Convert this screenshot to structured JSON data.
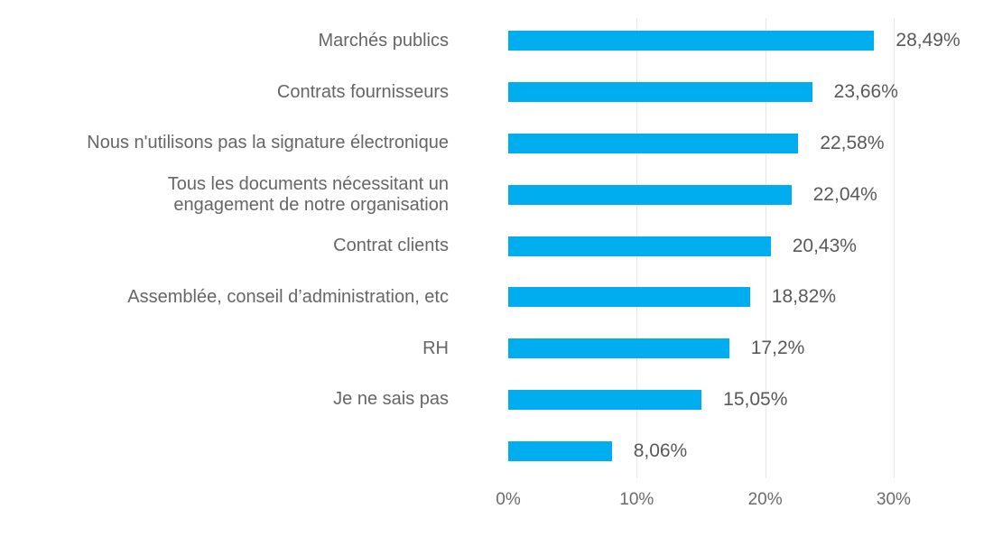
{
  "chart_data": {
    "type": "bar",
    "orientation": "horizontal",
    "title": "",
    "categories": [
      "Marchés publics",
      "Contrats fournisseurs",
      "Nous n'utilisons pas la signature électronique",
      "Tous les documents nécessitant un\nengagement de notre organisation",
      "Contrat clients",
      "Assemblée, conseil d’administration, etc",
      "RH",
      "Je ne sais pas",
      ""
    ],
    "values": [
      28.49,
      23.66,
      22.58,
      22.04,
      20.43,
      18.82,
      17.2,
      15.05,
      8.06
    ],
    "value_labels": [
      "28,49%",
      "23,66%",
      "22,58%",
      "22,04%",
      "20,43%",
      "18,82%",
      "17,2%",
      "15,05%",
      "8,06%"
    ],
    "x_ticks": [
      "0%",
      "10%",
      "20%",
      "30%"
    ],
    "xlim": [
      0,
      33.5
    ],
    "grid": true,
    "legend_position": "none",
    "bar_color": "#00AEEF",
    "label_color": "#666666",
    "value_color": "#58595B",
    "tick_color": "#6A6A6A",
    "gridline_color": "#E8E8E8"
  }
}
